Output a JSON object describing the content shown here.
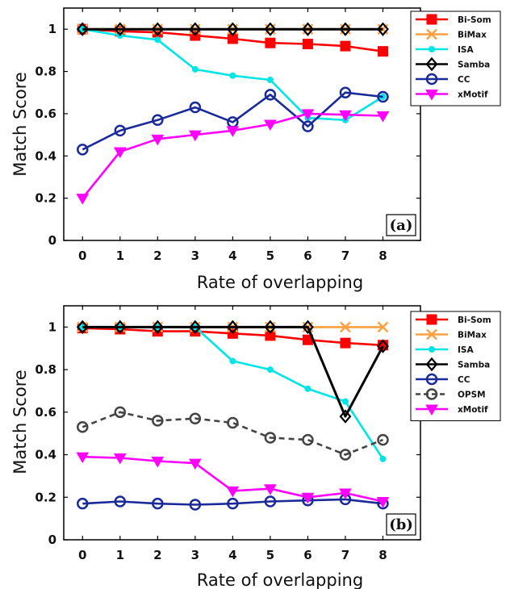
{
  "chart_data": [
    {
      "type": "line",
      "panel_label": "(a)",
      "xlabel": "Rate of overlapping",
      "ylabel": "Match Score",
      "x": [
        0,
        1,
        2,
        3,
        4,
        5,
        6,
        7,
        8
      ],
      "xticks": [
        "0",
        "1",
        "2",
        "3",
        "4",
        "5",
        "6",
        "7",
        "8"
      ],
      "yticks": [
        "0",
        "0.2",
        "0.4",
        "0.6",
        "0.8",
        "1"
      ],
      "xlim": [
        -0.5,
        9
      ],
      "ylim": [
        0,
        1.1
      ],
      "legend_position": "top-right",
      "series": [
        {
          "name": "Bi-Som",
          "color": "#ff0000",
          "marker": "square",
          "dashed": false,
          "values": [
            1.0,
            0.99,
            0.985,
            0.97,
            0.955,
            0.935,
            0.93,
            0.92,
            0.895
          ]
        },
        {
          "name": "BiMax",
          "color": "#ffa040",
          "marker": "x",
          "dashed": false,
          "values": [
            1.0,
            1.0,
            1.0,
            1.0,
            1.0,
            1.0,
            1.0,
            1.0,
            1.0
          ]
        },
        {
          "name": "ISA",
          "color": "#00e5e5",
          "marker": "dot",
          "dashed": false,
          "values": [
            1.0,
            0.97,
            0.95,
            0.81,
            0.78,
            0.76,
            0.58,
            0.57,
            0.68
          ]
        },
        {
          "name": "Samba",
          "color": "#000000",
          "marker": "diamond",
          "dashed": false,
          "values": [
            1.0,
            1.0,
            1.0,
            1.0,
            1.0,
            1.0,
            1.0,
            1.0,
            1.0
          ]
        },
        {
          "name": "CC",
          "color": "#1a2a99",
          "marker": "circle",
          "dashed": false,
          "values": [
            0.43,
            0.52,
            0.57,
            0.63,
            0.56,
            0.69,
            0.54,
            0.7,
            0.68
          ]
        },
        {
          "name": "xMotif",
          "color": "#ff00ff",
          "marker": "triangle",
          "dashed": false,
          "values": [
            0.2,
            0.42,
            0.48,
            0.5,
            0.52,
            0.55,
            0.6,
            0.595,
            0.59
          ]
        }
      ]
    },
    {
      "type": "line",
      "panel_label": "(b)",
      "xlabel": "Rate of overlapping",
      "ylabel": "Match Score",
      "x": [
        0,
        1,
        2,
        3,
        4,
        5,
        6,
        7,
        8
      ],
      "xticks": [
        "0",
        "1",
        "2",
        "3",
        "4",
        "5",
        "6",
        "7",
        "8"
      ],
      "yticks": [
        "0",
        "0.2",
        "0.4",
        "0.6",
        "0.8",
        "1"
      ],
      "xlim": [
        -0.5,
        9
      ],
      "ylim": [
        0,
        1.1
      ],
      "legend_position": "top-right",
      "series": [
        {
          "name": "Bi-Som",
          "color": "#ff0000",
          "marker": "square",
          "dashed": false,
          "values": [
            0.995,
            0.99,
            0.98,
            0.98,
            0.97,
            0.96,
            0.94,
            0.925,
            0.915
          ]
        },
        {
          "name": "BiMax",
          "color": "#ffa040",
          "marker": "x",
          "dashed": false,
          "values": [
            1.0,
            1.0,
            1.0,
            1.0,
            1.0,
            1.0,
            1.0,
            1.0,
            1.0
          ]
        },
        {
          "name": "ISA",
          "color": "#00e5e5",
          "marker": "dot",
          "dashed": false,
          "values": [
            1.0,
            1.0,
            1.0,
            1.0,
            0.84,
            0.8,
            0.71,
            0.65,
            0.38
          ]
        },
        {
          "name": "Samba",
          "color": "#000000",
          "marker": "diamond",
          "dashed": false,
          "values": [
            1.0,
            1.0,
            1.0,
            1.0,
            1.0,
            1.0,
            1.0,
            0.58,
            0.91
          ]
        },
        {
          "name": "CC",
          "color": "#1a2a99",
          "marker": "circle",
          "dashed": false,
          "values": [
            0.17,
            0.18,
            0.17,
            0.165,
            0.17,
            0.18,
            0.185,
            0.19,
            0.17
          ]
        },
        {
          "name": "OPSM",
          "color": "#444444",
          "marker": "circle",
          "dashed": true,
          "values": [
            0.53,
            0.6,
            0.56,
            0.57,
            0.55,
            0.48,
            0.47,
            0.4,
            0.47
          ]
        },
        {
          "name": "xMotif",
          "color": "#ff00ff",
          "marker": "triangle",
          "dashed": false,
          "values": [
            0.39,
            0.385,
            0.37,
            0.36,
            0.23,
            0.24,
            0.2,
            0.22,
            0.18
          ]
        }
      ]
    }
  ]
}
